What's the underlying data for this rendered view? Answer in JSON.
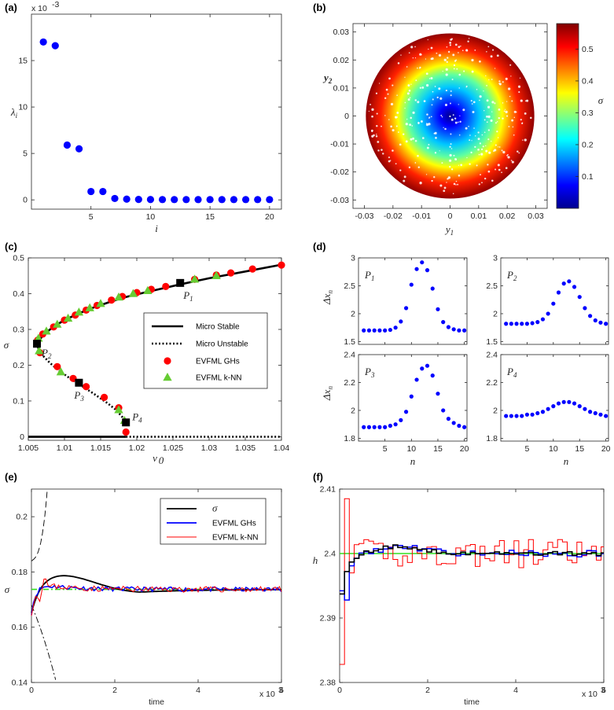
{
  "chart_data": [
    {
      "id": "a",
      "panel_label": "(a)",
      "type": "scatter",
      "xlabel": "i",
      "ylabel": "λi",
      "y_exponent": "x 10-3",
      "xlim": [
        0,
        21
      ],
      "ylim": [
        -1,
        20
      ],
      "xticks": [
        5,
        10,
        15,
        20
      ],
      "yticks": [
        0,
        5,
        10,
        15
      ],
      "series": [
        {
          "name": "eigenvalues",
          "color": "#0000ff",
          "x": [
            1,
            2,
            3,
            4,
            5,
            6,
            7,
            8,
            9,
            10,
            11,
            12,
            13,
            14,
            15,
            16,
            17,
            18,
            19,
            20
          ],
          "y": [
            17.0,
            16.6,
            5.9,
            5.5,
            0.9,
            0.9,
            0.15,
            0.08,
            0.05,
            0.04,
            0.03,
            0.03,
            0.03,
            0.03,
            0.03,
            0.03,
            0.03,
            0.03,
            0.03,
            0.03
          ]
        }
      ]
    },
    {
      "id": "b",
      "panel_label": "(b)",
      "type": "scatter",
      "xlabel": "y1",
      "ylabel": "y2",
      "colorbar_label": "σ",
      "xlim": [
        -0.034,
        0.034
      ],
      "ylim": [
        -0.033,
        0.033
      ],
      "xticks": [
        -0.03,
        -0.02,
        -0.01,
        0,
        0.01,
        0.02,
        0.03
      ],
      "yticks": [
        -0.03,
        -0.02,
        -0.01,
        0,
        0.01,
        0.02,
        0.03
      ],
      "colorbar_ticks": [
        0.1,
        0.2,
        0.3,
        0.4,
        0.5
      ],
      "colorbar_range": [
        0,
        0.58
      ],
      "disk_radius": 0.0295,
      "note": "points fill a disk; color = σ increasing with radius (blue center, red rim)"
    },
    {
      "id": "c",
      "panel_label": "(c)",
      "type": "line",
      "xlabel": "v0",
      "ylabel": "σ",
      "xlim": [
        1.005,
        1.04
      ],
      "ylim": [
        -0.01,
        0.5
      ],
      "xticks": [
        1.005,
        1.01,
        1.015,
        1.02,
        1.025,
        1.03,
        1.035,
        1.04
      ],
      "yticks": [
        0,
        0.1,
        0.2,
        0.3,
        0.4,
        0.5
      ],
      "legend": [
        "Micro Stable",
        "Micro Unstable",
        "EVFML GHs",
        "EVFML k-NN"
      ],
      "stable_branch": {
        "v0": [
          1.0062,
          1.007,
          1.008,
          1.009,
          1.01,
          1.012,
          1.014,
          1.016,
          1.018,
          1.02,
          1.023,
          1.026,
          1.03,
          1.035,
          1.04
        ],
        "sigma": [
          0.26,
          0.283,
          0.3,
          0.314,
          0.326,
          0.345,
          0.361,
          0.375,
          0.388,
          0.398,
          0.412,
          0.426,
          0.443,
          0.462,
          0.481
        ]
      },
      "unstable_branch": {
        "v0": [
          1.0062,
          1.0065,
          1.007,
          1.008,
          1.009,
          1.01,
          1.011,
          1.012,
          1.013,
          1.014,
          1.015,
          1.016,
          1.017,
          1.018,
          1.0185
        ],
        "sigma": [
          0.26,
          0.24,
          0.227,
          0.206,
          0.189,
          0.174,
          0.16,
          0.147,
          0.134,
          0.121,
          0.107,
          0.093,
          0.077,
          0.055,
          0.038
        ]
      },
      "zero_stable": {
        "v0": [
          1.005,
          1.0185
        ],
        "sigma": [
          0,
          0
        ]
      },
      "zero_unstable": {
        "v0": [
          1.0185,
          1.04
        ],
        "sigma": [
          0,
          0
        ]
      },
      "ghs_points": {
        "v0": [
          1.0063,
          1.007,
          1.0085,
          1.01,
          1.0115,
          1.013,
          1.0145,
          1.0165,
          1.018,
          1.02,
          1.022,
          1.024,
          1.028,
          1.031,
          1.033,
          1.036,
          1.04,
          1.0066,
          1.009,
          1.0112,
          1.013,
          1.0155,
          1.0175,
          1.0185
        ],
        "sigma": [
          0.27,
          0.287,
          0.307,
          0.326,
          0.34,
          0.354,
          0.367,
          0.382,
          0.392,
          0.403,
          0.412,
          0.42,
          0.44,
          0.452,
          0.458,
          0.469,
          0.48,
          0.235,
          0.196,
          0.163,
          0.14,
          0.11,
          0.081,
          0.013
        ]
      },
      "knn_points": {
        "v0": [
          1.0064,
          1.0075,
          1.009,
          1.0105,
          1.012,
          1.0135,
          1.015,
          1.0175,
          1.0195,
          1.0215,
          1.028,
          1.031,
          1.0065,
          1.0095,
          1.0175,
          1.0183
        ],
        "sigma": [
          0.275,
          0.295,
          0.314,
          0.331,
          0.348,
          0.36,
          0.372,
          0.39,
          0.4,
          0.408,
          0.44,
          0.45,
          0.24,
          0.181,
          0.075,
          0.045
        ]
      },
      "markers": [
        {
          "name": "P1",
          "v0": 1.026,
          "sigma": 0.43
        },
        {
          "name": "P2",
          "v0": 1.0062,
          "sigma": 0.26
        },
        {
          "name": "P3",
          "v0": 1.012,
          "sigma": 0.151
        },
        {
          "name": "P4",
          "v0": 1.0185,
          "sigma": 0.04
        }
      ]
    },
    {
      "id": "d",
      "panel_label": "(d)",
      "type": "scatter",
      "xlabel": "n",
      "ylabel": "Δxn",
      "subplots": [
        {
          "name": "P1",
          "ylim": [
            1.45,
            3.0
          ],
          "yticks": [
            1.5,
            2,
            2.5,
            3
          ],
          "values": [
            1.7,
            1.7,
            1.7,
            1.7,
            1.7,
            1.71,
            1.75,
            1.86,
            2.1,
            2.52,
            2.8,
            2.92,
            2.78,
            2.45,
            2.08,
            1.85,
            1.76,
            1.72,
            1.7,
            1.7
          ]
        },
        {
          "name": "P2",
          "ylim": [
            1.45,
            3.0
          ],
          "yticks": [
            1.5,
            2,
            2.5,
            3
          ],
          "values": [
            1.82,
            1.82,
            1.82,
            1.82,
            1.82,
            1.83,
            1.85,
            1.9,
            2.0,
            2.18,
            2.38,
            2.54,
            2.58,
            2.48,
            2.3,
            2.1,
            1.96,
            1.88,
            1.84,
            1.82
          ]
        },
        {
          "name": "P3",
          "ylim": [
            1.78,
            2.4
          ],
          "yticks": [
            1.8,
            2,
            2.2,
            2.4
          ],
          "values": [
            1.88,
            1.88,
            1.88,
            1.88,
            1.88,
            1.89,
            1.9,
            1.93,
            1.99,
            2.1,
            2.22,
            2.3,
            2.32,
            2.25,
            2.12,
            2.0,
            1.94,
            1.91,
            1.89,
            1.88
          ]
        },
        {
          "name": "P4",
          "ylim": [
            1.78,
            2.4
          ],
          "yticks": [
            1.8,
            2,
            2.2,
            2.4
          ],
          "values": [
            1.96,
            1.96,
            1.96,
            1.96,
            1.97,
            1.97,
            1.98,
            1.99,
            2.01,
            2.03,
            2.05,
            2.06,
            2.06,
            2.05,
            2.03,
            2.01,
            1.99,
            1.98,
            1.97,
            1.96
          ]
        }
      ],
      "xticks": [
        5,
        10,
        15,
        20
      ],
      "xlim": [
        0,
        20.5
      ]
    },
    {
      "id": "e",
      "panel_label": "(e)",
      "type": "line",
      "xlabel": "time",
      "ylabel": "σ",
      "x_exponent": "x 10^3",
      "xlim": [
        0,
        6000
      ],
      "ylim": [
        0.14,
        0.21
      ],
      "xticks": [
        0,
        2,
        4,
        6
      ],
      "yticks": [
        0.14,
        0.16,
        0.18,
        0.2
      ],
      "legend": [
        "σ",
        "EVFML GHs",
        "EVFML k-NN"
      ],
      "equilibrium": 0.1737
    },
    {
      "id": "f",
      "panel_label": "(f)",
      "type": "line",
      "xlabel": "time",
      "ylabel": "h",
      "x_exponent": "x 10^3",
      "xlim": [
        0,
        6000
      ],
      "ylim": [
        2.38,
        2.41
      ],
      "xticks": [
        0,
        2,
        4,
        6
      ],
      "yticks": [
        2.38,
        2.39,
        2.4,
        2.41
      ],
      "equilibrium": 2.4
    }
  ]
}
